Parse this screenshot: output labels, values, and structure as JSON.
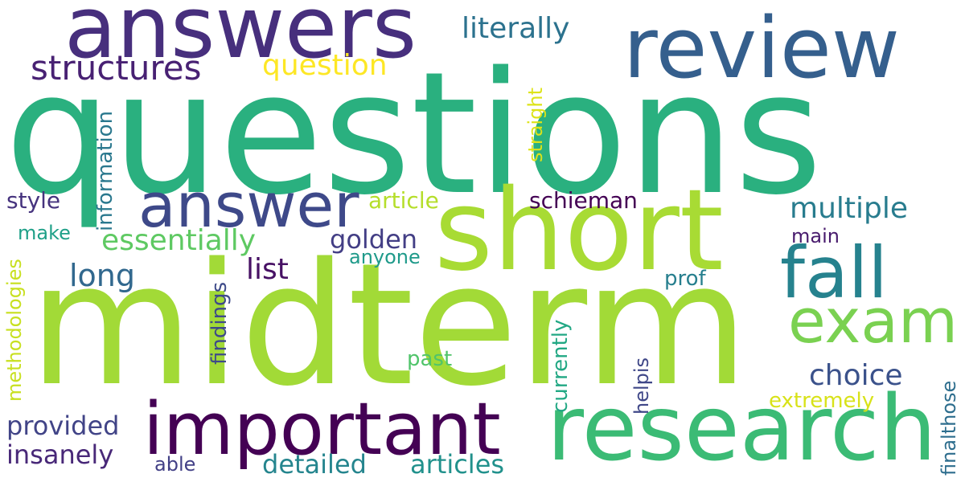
{
  "words": [
    {
      "id": "questions",
      "text": "questions",
      "color": "#2ab07f"
    },
    {
      "id": "midterm",
      "text": "midterm",
      "color": "#a2da37"
    },
    {
      "id": "answers",
      "text": "answers",
      "color": "#472f7d"
    },
    {
      "id": "review",
      "text": "review",
      "color": "#355f8d"
    },
    {
      "id": "short",
      "text": "short",
      "color": "#a8db34"
    },
    {
      "id": "research",
      "text": "research",
      "color": "#3bbb75"
    },
    {
      "id": "important",
      "text": "important",
      "color": "#440154"
    },
    {
      "id": "answer",
      "text": "answer",
      "color": "#3e4989"
    },
    {
      "id": "fall",
      "text": "fall",
      "color": "#26828e"
    },
    {
      "id": "exam",
      "text": "exam",
      "color": "#7ad151"
    },
    {
      "id": "structures",
      "text": "structures",
      "color": "#482173"
    },
    {
      "id": "question",
      "text": "question",
      "color": "#fde725"
    },
    {
      "id": "literally",
      "text": "literally",
      "color": "#2c728e"
    },
    {
      "id": "multiple",
      "text": "multiple",
      "color": "#287c8e"
    },
    {
      "id": "essentially",
      "text": "essentially",
      "color": "#5ec962"
    },
    {
      "id": "golden",
      "text": "golden",
      "color": "#433e85"
    },
    {
      "id": "long",
      "text": "long",
      "color": "#31688e"
    },
    {
      "id": "list",
      "text": "list",
      "color": "#471164"
    },
    {
      "id": "choice",
      "text": "choice",
      "color": "#3b528b"
    },
    {
      "id": "provided",
      "text": "provided",
      "color": "#414487"
    },
    {
      "id": "insanely",
      "text": "insanely",
      "color": "#482878"
    },
    {
      "id": "detailed",
      "text": "detailed",
      "color": "#25858e"
    },
    {
      "id": "articles",
      "text": "articles",
      "color": "#21918c"
    },
    {
      "id": "schieman",
      "text": "schieman",
      "color": "#440154"
    },
    {
      "id": "article",
      "text": "article",
      "color": "#b5de2b"
    },
    {
      "id": "style",
      "text": "style",
      "color": "#46337e"
    },
    {
      "id": "make",
      "text": "make",
      "color": "#1fa088"
    },
    {
      "id": "anyone",
      "text": "anyone",
      "color": "#1f9a8a"
    },
    {
      "id": "main",
      "text": "main",
      "color": "#481b6d"
    },
    {
      "id": "prof",
      "text": "prof",
      "color": "#277f8e"
    },
    {
      "id": "past",
      "text": "past",
      "color": "#50c46a"
    },
    {
      "id": "extremely",
      "text": "extremely",
      "color": "#d8e219"
    },
    {
      "id": "able",
      "text": "able",
      "color": "#424086"
    },
    {
      "id": "information",
      "text": "information",
      "color": "#2a788e"
    },
    {
      "id": "straight",
      "text": "straight",
      "color": "#dde318"
    },
    {
      "id": "methodologies",
      "text": "methodologies",
      "color": "#c8e020"
    },
    {
      "id": "findings",
      "text": "findings",
      "color": "#3e4a89"
    },
    {
      "id": "currently",
      "text": "currently",
      "color": "#22a884"
    },
    {
      "id": "helpis",
      "text": "helpis",
      "color": "#3f4788"
    },
    {
      "id": "finalthose",
      "text": "finalthose",
      "color": "#2e6e8e"
    }
  ]
}
